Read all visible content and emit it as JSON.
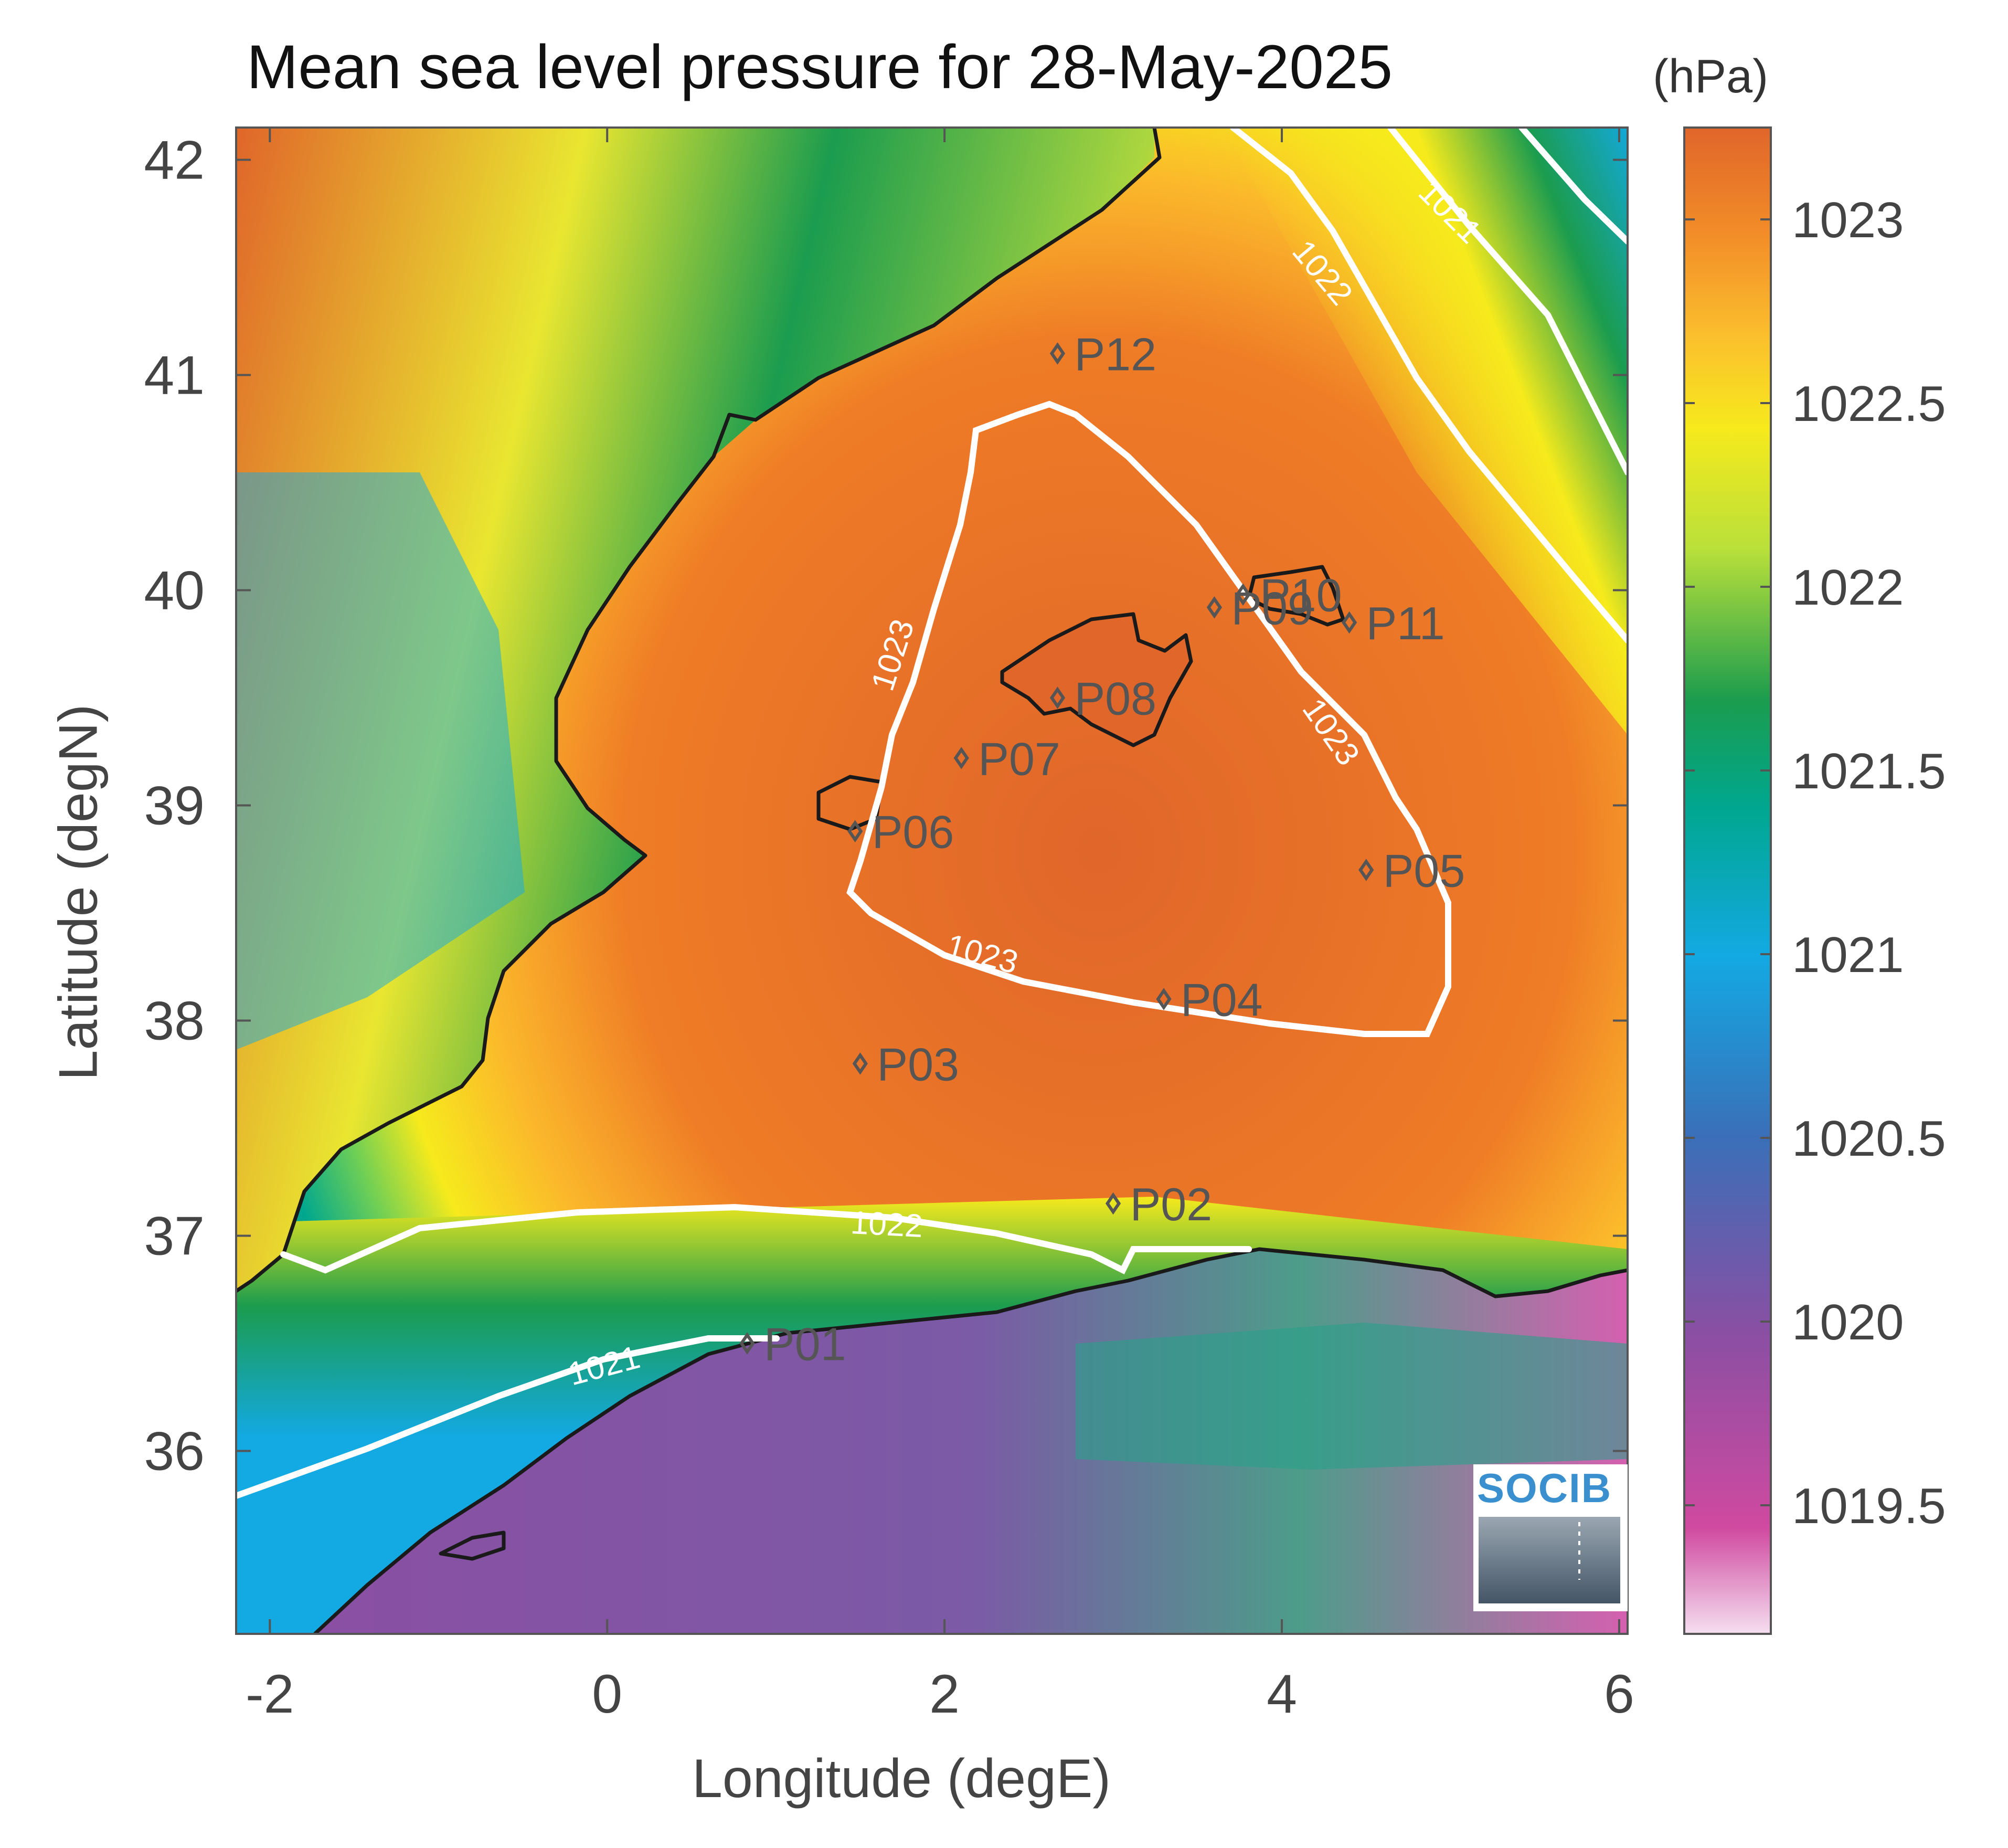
{
  "title": "Mean sea level pressure for 28-May-2025",
  "colorbar": {
    "unit": "(hPa)",
    "ticks": [
      "1023",
      "1022.5",
      "1022",
      "1021.5",
      "1021",
      "1020.5",
      "1020",
      "1019.5"
    ],
    "range": [
      1019.15,
      1023.25
    ],
    "colormap": [
      "#f5dff0",
      "#d04aa0",
      "#8a4fa3",
      "#3a6fb8",
      "#13a9e3",
      "#00a78e",
      "#1b9c4e",
      "#b9e03a",
      "#f6ea1c",
      "#fbc02d",
      "#f28c28",
      "#e0662a"
    ]
  },
  "axes": {
    "xlabel": "Longitude (degE)",
    "ylabel": "Latitude (degN)",
    "xticks": [
      "-2",
      "0",
      "2",
      "4",
      "6"
    ],
    "yticks": [
      "42",
      "41",
      "40",
      "39",
      "38",
      "37",
      "36"
    ],
    "xlim": [
      -2.2,
      6.05
    ],
    "ylim": [
      35.15,
      42.15
    ]
  },
  "contours": [
    {
      "level": "1023",
      "labels": [
        "1023",
        "1023",
        "1023"
      ]
    },
    {
      "level": "1022",
      "labels": [
        "1022",
        "1022"
      ]
    },
    {
      "level": "1021",
      "labels": [
        "1021",
        "1021"
      ]
    }
  ],
  "points": [
    {
      "name": "P01",
      "lon": 0.83,
      "lat": 36.5
    },
    {
      "name": "P02",
      "lon": 3.0,
      "lat": 37.15
    },
    {
      "name": "P03",
      "lon": 1.5,
      "lat": 37.8
    },
    {
      "name": "P04",
      "lon": 3.3,
      "lat": 38.1
    },
    {
      "name": "P05",
      "lon": 4.5,
      "lat": 38.7
    },
    {
      "name": "P06",
      "lon": 1.47,
      "lat": 38.88
    },
    {
      "name": "P07",
      "lon": 2.1,
      "lat": 39.22
    },
    {
      "name": "P08",
      "lon": 2.67,
      "lat": 39.5
    },
    {
      "name": "P09",
      "lon": 3.6,
      "lat": 39.92
    },
    {
      "name": "P10",
      "lon": 3.77,
      "lat": 39.98
    },
    {
      "name": "P11",
      "lon": 4.4,
      "lat": 39.85
    },
    {
      "name": "P12",
      "lon": 2.67,
      "lat": 41.1
    }
  ],
  "logo": {
    "text": "SOCIB"
  },
  "colors": {
    "coastline": "#1a1a1a",
    "contour": "#ffffff",
    "sea_high": "#e0662a",
    "sea_mid": "#f6ea1c",
    "sea_low": "#00a78e"
  }
}
